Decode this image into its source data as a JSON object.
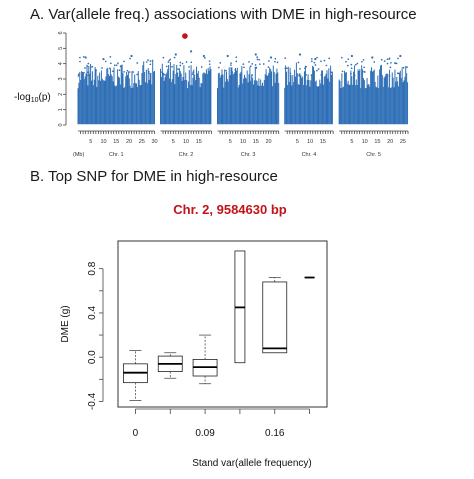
{
  "panel_a": {
    "title": "A. Var(allele freq.) associations with DME in high-resource",
    "ylabel": "-log10(p)",
    "ylabel_main": "-log",
    "ylabel_sub": "10",
    "ylabel_tail": "(p)",
    "y_ticks": [
      "0",
      "1",
      "2",
      "3",
      "4",
      "5",
      "6"
    ],
    "mb_label": "(Mb)",
    "point_color": "#2f6fb6",
    "highlight_color": "#c0141a"
  },
  "panel_b": {
    "title": "B. Top SNP for DME in high-resource",
    "snp_label": "Chr. 2, 9584630 bp",
    "snp_color": "#c0141a",
    "ylabel": "DME (g)",
    "xlabel": "Stand var(allele frequency)",
    "y_ticks": [
      "-0.4",
      "0.0",
      "0.4",
      "0.8"
    ],
    "x_ticks": [
      "0",
      "0.09",
      "0.16"
    ]
  },
  "chart_data": [
    {
      "type": "scatter",
      "title": "A. Var(allele freq.) associations with DME in high-resource",
      "ylabel": "-log10(p)",
      "ylim": [
        0,
        6
      ],
      "chromosomes": [
        {
          "name": "Chr. 1",
          "length_mb": 30,
          "tick_labels": [
            "5",
            "10",
            "15",
            "20",
            "25",
            "30"
          ]
        },
        {
          "name": "Chr. 2",
          "length_mb": 20,
          "tick_labels": [
            "5",
            "10",
            "15"
          ]
        },
        {
          "name": "Chr. 3",
          "length_mb": 24,
          "tick_labels": [
            "5",
            "10",
            "15",
            "20"
          ]
        },
        {
          "name": "Chr. 4",
          "length_mb": 19,
          "tick_labels": [
            "5",
            "10",
            "15"
          ]
        },
        {
          "name": "Chr. 5",
          "length_mb": 27,
          "tick_labels": [
            "5",
            "10",
            "15",
            "20",
            "25"
          ]
        }
      ],
      "typical_max": 4.2,
      "peaks": [
        {
          "chr": 1,
          "mb": 3,
          "value": 4.4
        },
        {
          "chr": 1,
          "mb": 10,
          "value": 4.3
        },
        {
          "chr": 1,
          "mb": 21,
          "value": 4.5
        },
        {
          "chr": 2,
          "mb": 6,
          "value": 4.6
        },
        {
          "chr": 2,
          "mb": 9.58,
          "value": 5.8,
          "highlight": true
        },
        {
          "chr": 2,
          "mb": 12,
          "value": 4.8
        },
        {
          "chr": 2,
          "mb": 17,
          "value": 4.5
        },
        {
          "chr": 3,
          "mb": 4,
          "value": 4.5
        },
        {
          "chr": 3,
          "mb": 15,
          "value": 4.6
        },
        {
          "chr": 3,
          "mb": 21,
          "value": 4.4
        },
        {
          "chr": 4,
          "mb": 6,
          "value": 4.6
        },
        {
          "chr": 4,
          "mb": 12,
          "value": 4.3
        },
        {
          "chr": 5,
          "mb": 5,
          "value": 4.5
        },
        {
          "chr": 5,
          "mb": 13,
          "value": 4.4
        },
        {
          "chr": 5,
          "mb": 24,
          "value": 4.5
        }
      ]
    },
    {
      "type": "box",
      "title": "Chr. 2, 9584630 bp",
      "xlabel": "Stand var(allele frequency)",
      "ylabel": "DME (g)",
      "ylim": [
        -0.45,
        1.05
      ],
      "categories": [
        "0",
        "",
        "0.09",
        "",
        "0.16",
        ""
      ],
      "boxes": [
        {
          "min": -0.39,
          "q1": -0.23,
          "median": -0.14,
          "q3": -0.06,
          "max": 0.06
        },
        {
          "min": -0.19,
          "q1": -0.13,
          "median": -0.06,
          "q3": 0.01,
          "max": 0.04
        },
        {
          "min": -0.24,
          "q1": -0.17,
          "median": -0.09,
          "q3": -0.02,
          "max": 0.2
        },
        {
          "min": -0.05,
          "q1": -0.05,
          "median": 0.45,
          "q3": 0.96,
          "max": 0.96
        },
        {
          "min": 0.04,
          "q1": 0.04,
          "median": 0.08,
          "q3": 0.68,
          "max": 0.72
        },
        {
          "min": 0.72,
          "q1": 0.72,
          "median": 0.72,
          "q3": 0.72,
          "max": 0.72
        }
      ]
    }
  ]
}
